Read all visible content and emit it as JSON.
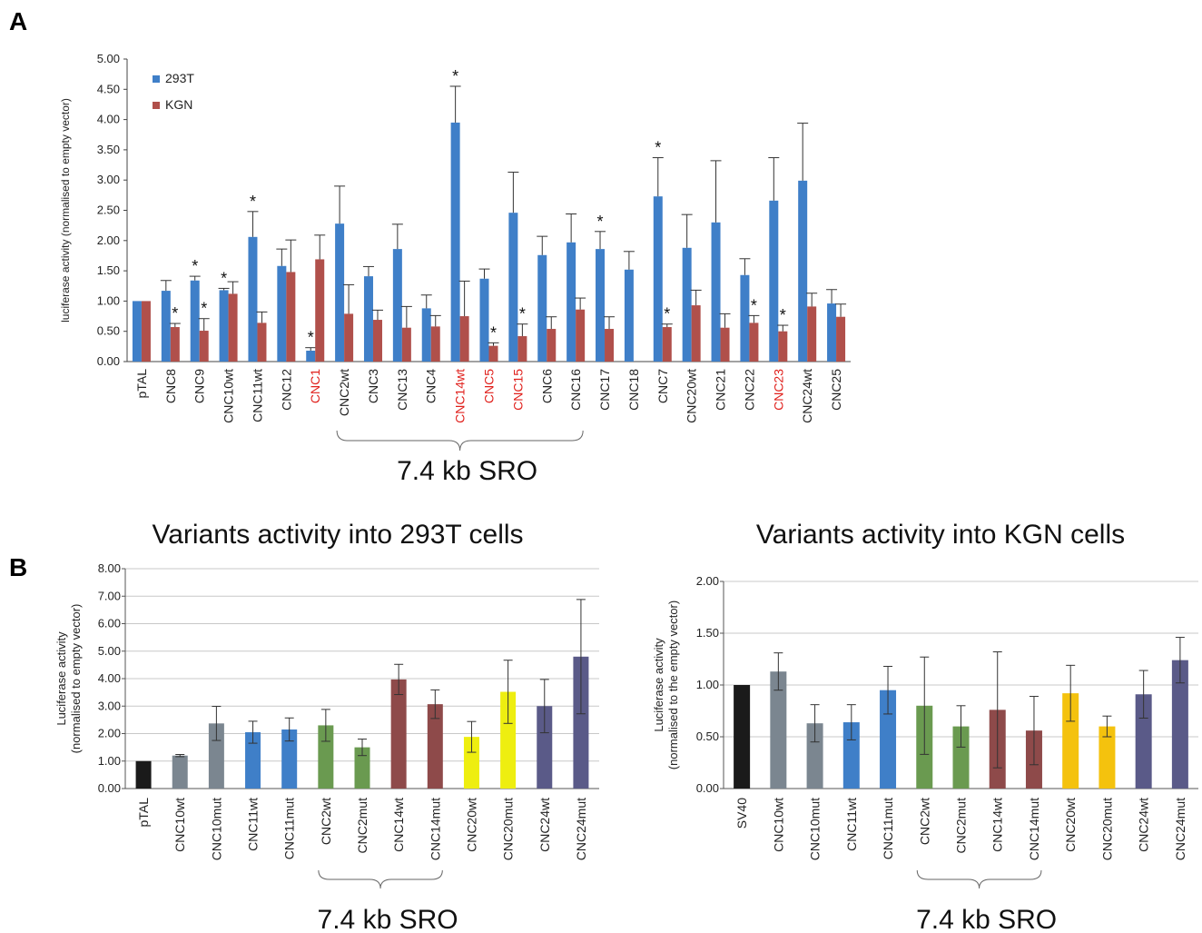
{
  "panels": {
    "a_letter": "A",
    "b_letter": "B"
  },
  "colors": {
    "blue": "#3f7fc8",
    "red": "#b0504b",
    "red_label": "#e0201c",
    "grid": "#c8c8c8",
    "black": "#1a1a1a"
  },
  "chart_data": [
    {
      "id": "A",
      "type": "bar",
      "title": "",
      "xlabel": "",
      "ylabel": "luciferase activity (normalised to empty vector)",
      "ylim": [
        0,
        5
      ],
      "yticks": [
        "0.00",
        "0.50",
        "1.00",
        "1.50",
        "2.00",
        "2.50",
        "3.00",
        "3.50",
        "4.00",
        "4.50",
        "5.00"
      ],
      "grid": false,
      "legend_position": "top-left",
      "categories": [
        "pTAL",
        "CNC8",
        "CNC9",
        "CNC10wt",
        "CNC11wt",
        "CNC12",
        "CNC1",
        "CNC2wt",
        "CNC3",
        "CNC13",
        "CNC4",
        "CNC14wt",
        "CNC5",
        "CNC15",
        "CNC6",
        "CNC16",
        "CNC17",
        "CNC18",
        "CNC7",
        "CNC20wt",
        "CNC21",
        "CNC22",
        "CNC23",
        "CNC24wt",
        "CNC25"
      ],
      "red_labels": [
        "CNC1",
        "CNC14wt",
        "CNC5",
        "CNC15",
        "CNC23"
      ],
      "series": [
        {
          "name": "293T",
          "color": "#3f7fc8",
          "values": [
            1.0,
            1.17,
            1.34,
            1.18,
            2.06,
            1.58,
            0.18,
            2.28,
            1.41,
            1.86,
            0.88,
            3.95,
            1.37,
            2.46,
            1.76,
            1.97,
            1.86,
            1.52,
            2.73,
            1.88,
            2.3,
            1.43,
            2.66,
            2.99,
            0.96
          ],
          "errors": [
            0.0,
            0.17,
            0.07,
            0.03,
            0.42,
            0.28,
            0.05,
            0.62,
            0.16,
            0.41,
            0.22,
            0.6,
            0.16,
            0.67,
            0.31,
            0.47,
            0.29,
            0.3,
            0.64,
            0.55,
            1.02,
            0.27,
            0.71,
            0.95,
            0.23
          ],
          "significant": [
            false,
            false,
            true,
            true,
            true,
            false,
            true,
            false,
            false,
            false,
            false,
            true,
            false,
            false,
            false,
            false,
            true,
            false,
            true,
            false,
            false,
            false,
            false,
            false,
            false
          ]
        },
        {
          "name": "KGN",
          "color": "#b0504b",
          "values": [
            1.0,
            0.57,
            0.51,
            1.12,
            0.64,
            1.48,
            1.69,
            0.79,
            0.69,
            0.56,
            0.58,
            0.75,
            0.26,
            0.42,
            0.54,
            0.86,
            0.54,
            null,
            0.57,
            0.93,
            0.56,
            0.64,
            0.5,
            0.91,
            0.74
          ],
          "errors": [
            0.0,
            0.06,
            0.2,
            0.2,
            0.18,
            0.53,
            0.4,
            0.48,
            0.16,
            0.35,
            0.18,
            0.58,
            0.05,
            0.2,
            0.2,
            0.19,
            0.2,
            null,
            0.05,
            0.25,
            0.23,
            0.12,
            0.1,
            0.22,
            0.21
          ],
          "significant": [
            false,
            true,
            true,
            false,
            false,
            false,
            false,
            false,
            false,
            false,
            false,
            false,
            true,
            true,
            false,
            false,
            false,
            false,
            true,
            false,
            false,
            true,
            true,
            false,
            false
          ]
        }
      ],
      "significance_mark": "*",
      "bracket_label": "7.4 kb SRO",
      "bracket_range": [
        "CNC2wt",
        "CNC16"
      ]
    },
    {
      "id": "B-293T",
      "type": "bar",
      "title": "Variants activity into 293T cells",
      "xlabel": "",
      "ylabel_line1": "Luciferase activity",
      "ylabel_line2": "(normalised to empty vector)",
      "ylim": [
        0,
        8
      ],
      "yticks": [
        "0.00",
        "1.00",
        "2.00",
        "3.00",
        "4.00",
        "5.00",
        "6.00",
        "7.00",
        "8.00"
      ],
      "grid": true,
      "categories": [
        "pTAL",
        "CNC10wt",
        "CNC10mut",
        "CNC11wt",
        "CNC11mut",
        "CNC2wt",
        "CNC2mut",
        "CNC14wt",
        "CNC14mut",
        "CNC20wt",
        "CNC20mut",
        "CNC24wt",
        "CNC24mut"
      ],
      "values": [
        1.0,
        1.2,
        2.37,
        2.05,
        2.15,
        2.3,
        1.5,
        3.97,
        3.07,
        1.88,
        3.52,
        3.0,
        4.8
      ],
      "errors": [
        0.0,
        0.04,
        0.62,
        0.4,
        0.42,
        0.58,
        0.3,
        0.55,
        0.52,
        0.56,
        1.15,
        0.97,
        2.08
      ],
      "colors": [
        "#1a1a1a",
        "#7b8690",
        "#7b8690",
        "#3f7fc8",
        "#3f7fc8",
        "#6a9a50",
        "#6a9a50",
        "#8e4a4a",
        "#8e4a4a",
        "#eeee10",
        "#eeee10",
        "#5a5a88",
        "#5a5a88"
      ],
      "bracket_label": "7.4 kb SRO",
      "bracket_range": [
        "CNC2wt",
        "CNC14mut"
      ]
    },
    {
      "id": "B-KGN",
      "type": "bar",
      "title": "Variants activity into KGN cells",
      "xlabel": "",
      "ylabel_line1": "Luciferase activity",
      "ylabel_line2": "(normalised to the empty vector)",
      "ylim": [
        0,
        2
      ],
      "yticks": [
        "0.00",
        "0.50",
        "1.00",
        "1.50",
        "2.00"
      ],
      "grid": true,
      "categories": [
        "SV40",
        "CNC10wt",
        "CNC10mut",
        "CNC11wt",
        "CNC11mut",
        "CNC2wt",
        "CNC2mut",
        "CNC14wt",
        "CNC14mut",
        "CNC20wt",
        "CNC20mut",
        "CNC24wt",
        "CNC24mut"
      ],
      "values": [
        1.0,
        1.13,
        0.63,
        0.64,
        0.95,
        0.8,
        0.6,
        0.76,
        0.56,
        0.92,
        0.6,
        0.91,
        1.24
      ],
      "errors": [
        0.0,
        0.18,
        0.18,
        0.17,
        0.23,
        0.47,
        0.2,
        0.56,
        0.33,
        0.27,
        0.1,
        0.23,
        0.22
      ],
      "colors": [
        "#1a1a1a",
        "#7b8690",
        "#7b8690",
        "#3f7fc8",
        "#3f7fc8",
        "#6a9a50",
        "#6a9a50",
        "#8e4a4a",
        "#8e4a4a",
        "#f4c20e",
        "#f4c20e",
        "#5a5a88",
        "#5a5a88"
      ],
      "bracket_label": "7.4 kb SRO",
      "bracket_range": [
        "CNC2wt",
        "CNC14mut"
      ]
    }
  ]
}
